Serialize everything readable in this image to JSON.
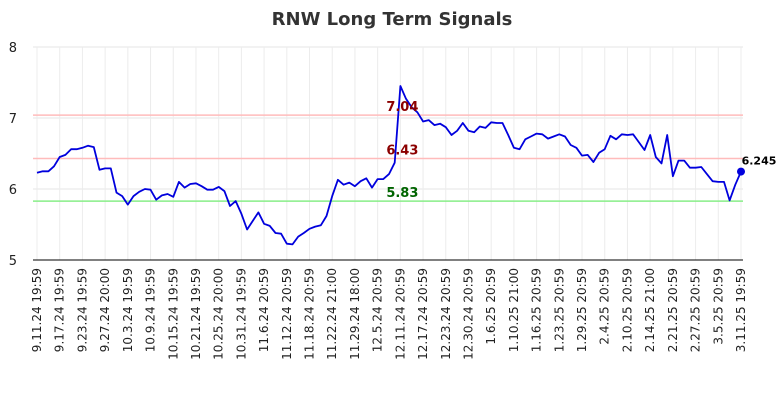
{
  "chart_data": {
    "type": "line",
    "title": "RNW Long Term Signals",
    "xlabel": "",
    "ylabel": "",
    "ylim": [
      5,
      8
    ],
    "yticks": [
      "5",
      "6",
      "7",
      "8"
    ],
    "grid": true,
    "line_color": "#0000dd",
    "xtick_labels": [
      "9.11.24 19:59",
      "9.17.24 19:59",
      "9.23.24 19:59",
      "9.27.24 20:00",
      "10.3.24 19:59",
      "10.9.24 19:59",
      "10.15.24 19:59",
      "10.21.24 19:59",
      "10.25.24 20:00",
      "10.31.24 19:59",
      "11.6.24 20:59",
      "11.12.24 20:59",
      "11.18.24 20:59",
      "11.22.24 21:00",
      "11.29.24 18:00",
      "12.5.24 20:59",
      "12.11.24 20:59",
      "12.17.24 20:59",
      "12.23.24 20:59",
      "12.30.24 20:59",
      "1.6.25 20:59",
      "1.10.25 21:00",
      "1.16.25 20:59",
      "1.23.25 20:59",
      "1.29.25 20:59",
      "2.4.25 20:59",
      "2.10.25 20:59",
      "2.14.25 21:00",
      "2.21.25 20:59",
      "2.27.25 20:59",
      "3.5.25 20:59",
      "3.11.25 19:59"
    ],
    "values": [
      6.23,
      6.25,
      6.25,
      6.32,
      6.45,
      6.48,
      6.56,
      6.56,
      6.58,
      6.61,
      6.59,
      6.27,
      6.29,
      6.29,
      5.95,
      5.9,
      5.78,
      5.9,
      5.96,
      6.0,
      5.99,
      5.85,
      5.91,
      5.93,
      5.89,
      6.1,
      6.02,
      6.07,
      6.08,
      6.04,
      5.99,
      5.99,
      6.03,
      5.97,
      5.76,
      5.83,
      5.65,
      5.43,
      5.55,
      5.67,
      5.51,
      5.48,
      5.38,
      5.37,
      5.23,
      5.22,
      5.33,
      5.38,
      5.44,
      5.47,
      5.49,
      5.62,
      5.9,
      6.13,
      6.06,
      6.09,
      6.04,
      6.11,
      6.15,
      6.02,
      6.14,
      6.14,
      6.21,
      6.37,
      7.45,
      7.27,
      7.15,
      7.08,
      6.95,
      6.97,
      6.9,
      6.92,
      6.87,
      6.76,
      6.82,
      6.93,
      6.82,
      6.8,
      6.88,
      6.86,
      6.94,
      6.93,
      6.93,
      6.76,
      6.58,
      6.56,
      6.7,
      6.74,
      6.78,
      6.77,
      6.71,
      6.74,
      6.77,
      6.74,
      6.62,
      6.58,
      6.47,
      6.48,
      6.38,
      6.51,
      6.56,
      6.75,
      6.7,
      6.77,
      6.76,
      6.77,
      6.66,
      6.55,
      6.76,
      6.45,
      6.36,
      6.76,
      6.18,
      6.4,
      6.4,
      6.3,
      6.3,
      6.31,
      6.21,
      6.11,
      6.1,
      6.1,
      5.84,
      6.06,
      6.245
    ],
    "hlines": [
      {
        "label": "7.04",
        "value": 7.04,
        "line_color": "#ffbbbb",
        "text_color": "#8b0000"
      },
      {
        "label": "6.43",
        "value": 6.43,
        "line_color": "#ffbbbb",
        "text_color": "#8b0000"
      },
      {
        "label": "5.83",
        "value": 5.83,
        "line_color": "#88ee88",
        "text_color": "#006400"
      }
    ],
    "last_point_label": "6.245"
  }
}
